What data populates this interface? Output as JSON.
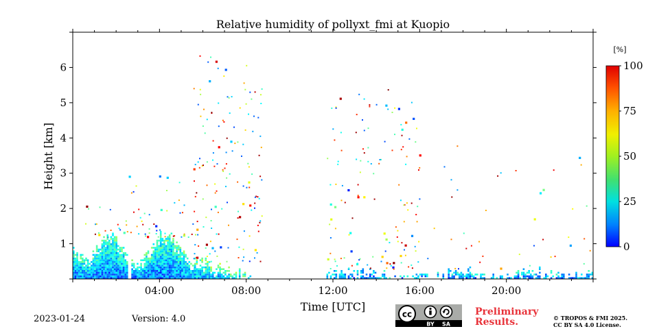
{
  "chart_data": {
    "type": "heatmap",
    "title": "Relative humidity of pollyxt_fmi at Kuopio",
    "xlabel": "Time [UTC]",
    "ylabel": "Height [km]",
    "xlim": [
      0,
      24
    ],
    "ylim": [
      0,
      7
    ],
    "x_ticks": [
      {
        "value": 4,
        "label": "04:00"
      },
      {
        "value": 8,
        "label": "08:00"
      },
      {
        "value": 12,
        "label": "12:00"
      },
      {
        "value": 16,
        "label": "16:00"
      },
      {
        "value": 20,
        "label": "20:00"
      }
    ],
    "y_ticks": [
      {
        "value": 1,
        "label": "1"
      },
      {
        "value": 2,
        "label": "2"
      },
      {
        "value": 3,
        "label": "3"
      },
      {
        "value": 4,
        "label": "4"
      },
      {
        "value": 5,
        "label": "5"
      },
      {
        "value": 6,
        "label": "6"
      }
    ],
    "colorbar": {
      "unit": "[%]",
      "range": [
        0,
        100
      ],
      "ticks": [
        {
          "value": 0,
          "label": "0"
        },
        {
          "value": 25,
          "label": "25"
        },
        {
          "value": 50,
          "label": "50"
        },
        {
          "value": 75,
          "label": "75"
        },
        {
          "value": 100,
          "label": "100"
        }
      ],
      "colormap": "jet"
    },
    "data_regions": [
      {
        "t_start": 0.0,
        "t_end": 2.5,
        "h_top_min": 0.6,
        "h_top_max": 1.3,
        "rh_min": 15,
        "rh_max": 55
      },
      {
        "t_start": 2.7,
        "t_end": 5.6,
        "h_top_min": 0.5,
        "h_top_max": 1.3,
        "rh_min": 15,
        "rh_max": 55
      },
      {
        "t_start": 5.6,
        "t_end": 8.5,
        "h_top_min": 0.05,
        "h_top_max": 0.6,
        "rh_min": 20,
        "rh_max": 60
      },
      {
        "t_start": 11.7,
        "t_end": 17.1,
        "h_top_min": 0.05,
        "h_top_max": 0.25,
        "rh_min": 15,
        "rh_max": 45
      },
      {
        "t_start": 17.3,
        "t_end": 21.5,
        "h_top_min": 0.1,
        "h_top_max": 0.3,
        "rh_min": 15,
        "rh_max": 45
      },
      {
        "t_start": 21.7,
        "t_end": 24.0,
        "h_top_min": 0.1,
        "h_top_max": 0.2,
        "rh_min": 15,
        "rh_max": 45
      }
    ],
    "scatter_regions": [
      {
        "t_start": 0.3,
        "t_end": 2.5,
        "h_min": 1.2,
        "h_max": 2.1,
        "density": 20
      },
      {
        "t_start": 2.5,
        "t_end": 5.5,
        "h_min": 1.2,
        "h_max": 3.0,
        "density": 45
      },
      {
        "t_start": 5.5,
        "t_end": 8.7,
        "h_min": 0.5,
        "h_max": 6.4,
        "density": 160
      },
      {
        "t_start": 11.7,
        "t_end": 16.0,
        "h_min": 0.3,
        "h_max": 5.4,
        "density": 140
      },
      {
        "t_start": 16.0,
        "t_end": 24.0,
        "h_min": 0.3,
        "h_max": 3.8,
        "density": 40
      }
    ]
  },
  "footer": {
    "date": "2023-01-24",
    "version": "Version: 4.0",
    "preliminary_line1": "Preliminary",
    "preliminary_line2": "Results.",
    "license_line1": "© TROPOS & FMI 2025.",
    "license_line2": "CC BY SA 4.0 License.",
    "cc_badge": {
      "cc": "cc",
      "by": "BY",
      "sa": "SA"
    }
  },
  "colors": {
    "preliminary": "#e8333a",
    "badge_bg": "#a9aba8",
    "badge_dark": "#000000"
  },
  "icons": {
    "cc_logo": "creative-commons-icon",
    "by": "attribution-person-icon",
    "sa": "share-alike-icon"
  }
}
